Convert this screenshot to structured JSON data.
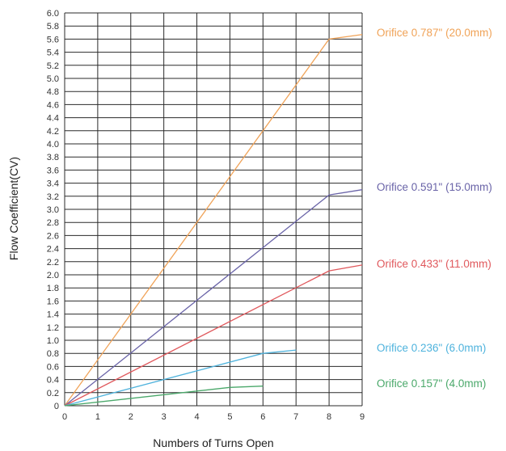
{
  "chart_data": {
    "type": "line",
    "title": "",
    "xlabel": "Numbers of Turns Open",
    "ylabel": "Flow Coefficient(CV)",
    "xlim": [
      0,
      9
    ],
    "ylim": [
      0,
      6.0
    ],
    "x_ticks": [
      "0",
      "1",
      "2",
      "3",
      "4",
      "5",
      "6",
      "7",
      "8",
      "9"
    ],
    "y_ticks": [
      "0",
      "0.2",
      "0.4",
      "0.6",
      "0.8",
      "1.0",
      "1.2",
      "1.4",
      "1.6",
      "1.8",
      "2.0",
      "2.2",
      "2.4",
      "2.6",
      "2.8",
      "3.0",
      "3.2",
      "3.4",
      "3.6",
      "3.8",
      "4.0",
      "4.2",
      "4.4",
      "4.6",
      "4.8",
      "5.0",
      "5.2",
      "5.4",
      "5.6",
      "5.8",
      "6.0"
    ],
    "grid": true,
    "legend": "right",
    "series": [
      {
        "name": "Orifice 0.787\" (20.0mm)",
        "color": "#f0a358",
        "x": [
          0,
          8,
          9
        ],
        "y": [
          0,
          5.6,
          5.67
        ]
      },
      {
        "name": "Orifice 0.591\" (15.0mm)",
        "color": "#6a64a8",
        "x": [
          0,
          8,
          9
        ],
        "y": [
          0,
          3.22,
          3.3
        ]
      },
      {
        "name": "Orifice 0.433\" (11.0mm)",
        "color": "#e0585c",
        "x": [
          0,
          8,
          9
        ],
        "y": [
          0,
          2.06,
          2.15
        ]
      },
      {
        "name": "Orifice 0.236\" (6.0mm)",
        "color": "#4fb3dd",
        "x": [
          0,
          6,
          7
        ],
        "y": [
          0,
          0.8,
          0.85
        ]
      },
      {
        "name": "Orifice 0.157\" (4.0mm)",
        "color": "#4aa86a",
        "x": [
          0,
          5,
          6
        ],
        "y": [
          0,
          0.28,
          0.3
        ]
      }
    ]
  }
}
